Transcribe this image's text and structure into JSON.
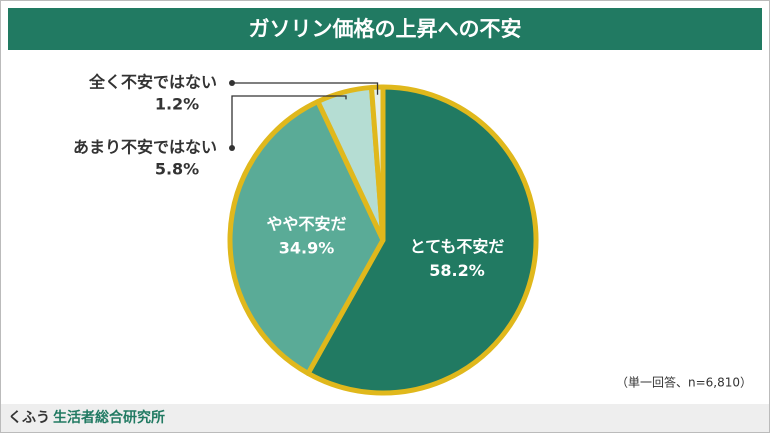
{
  "chart_data": {
    "type": "pie",
    "title": "ガソリン価格の上昇への不安",
    "categories": [
      "とても不安だ",
      "やや不安だ",
      "あまり不安ではない",
      "全く不安ではない"
    ],
    "values": [
      58.2,
      34.9,
      5.8,
      1.2
    ],
    "value_labels": [
      "58.2%",
      "34.9%",
      "5.8%",
      "1.2%"
    ],
    "colors": [
      "#217a62",
      "#5aab97",
      "#b5ddd3",
      "#e4efeb"
    ],
    "edge_color": "#e0b81c",
    "note": "（単一回答、n=6,810）",
    "source_brand": "くふう",
    "source_org": "生活者総合研究所"
  }
}
